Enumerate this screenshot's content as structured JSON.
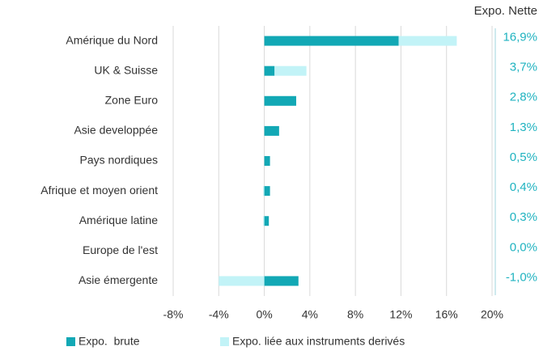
{
  "chart_data": {
    "type": "bar",
    "orientation": "horizontal",
    "categories": [
      "Amérique du Nord",
      "UK & Suisse",
      "Zone Euro",
      "Asie developpée",
      "Pays nordiques",
      "Afrique et moyen orient",
      "Amérique latine",
      "Europe de l'est",
      "Asie émergente"
    ],
    "series": [
      {
        "name": "Expo.  brute",
        "color": "#12a8b5",
        "values": [
          11.8,
          0.9,
          2.8,
          1.3,
          0.5,
          0.5,
          0.4,
          0,
          3.0
        ]
      },
      {
        "name": "Expo. liée aux instruments derivés",
        "color": "#c2f3f7",
        "values": [
          5.1,
          2.8,
          0,
          0,
          0,
          -0.1,
          -0.1,
          0,
          -4.0
        ]
      }
    ],
    "net_label": "Expo. Nette",
    "net_values": [
      16.9,
      3.7,
      2.8,
      1.3,
      0.5,
      0.4,
      0.3,
      0.0,
      -1.0
    ],
    "net_value_labels": [
      "16,9%",
      "3,7%",
      "2,8%",
      "1,3%",
      "0,5%",
      "0,4%",
      "0,3%",
      "0,0%",
      "-1,0%"
    ],
    "xlim": [
      -8,
      20
    ],
    "xticks": [
      {
        "value": -8,
        "label": "-8%"
      },
      {
        "value": -4,
        "label": "-4%"
      },
      {
        "value": 0,
        "label": "0%"
      },
      {
        "value": 4,
        "label": "4%"
      },
      {
        "value": 8,
        "label": "8%"
      },
      {
        "value": 12,
        "label": "12%"
      },
      {
        "value": 16,
        "label": "16%"
      },
      {
        "value": 20,
        "label": "20%"
      }
    ],
    "grid": true,
    "legend": "bottom"
  }
}
